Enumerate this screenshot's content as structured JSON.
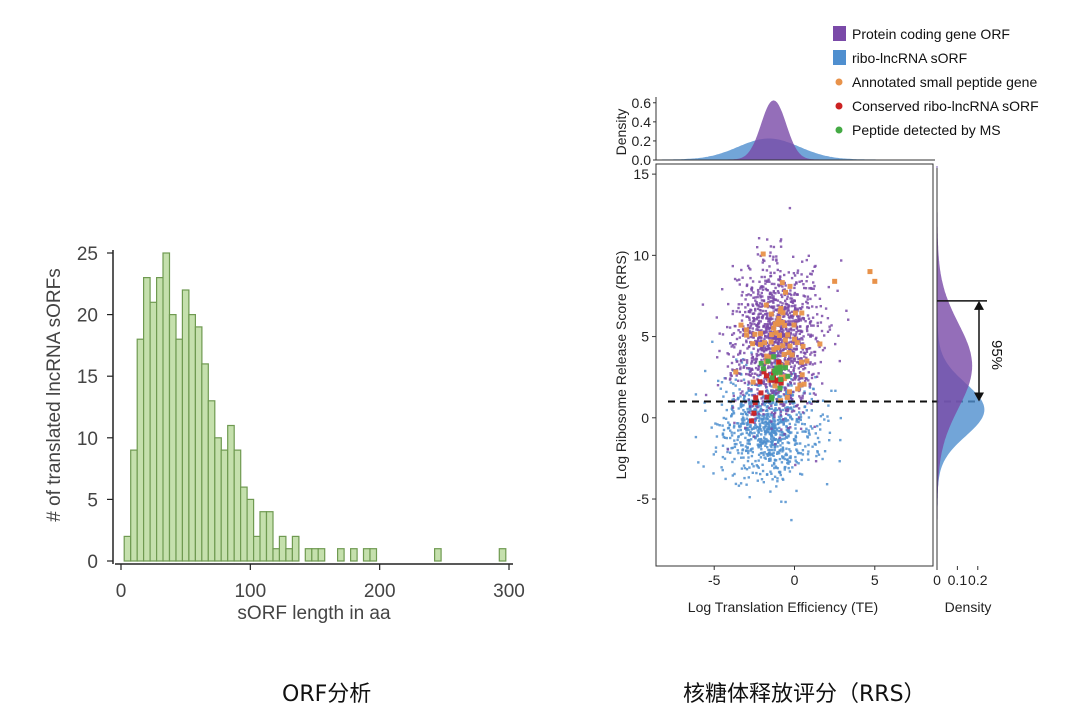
{
  "captions": {
    "left": "ORF分析",
    "right": "核糖体释放评分（RRS）"
  },
  "chart_data": [
    {
      "type": "bar",
      "subtype": "histogram",
      "xlabel": "sORF length in aa",
      "ylabel": "# of translated lncRNA sORFs",
      "xlim": [
        0,
        300
      ],
      "ylim": [
        0,
        25
      ],
      "x_ticks": [
        "0",
        "100",
        "200",
        "300"
      ],
      "y_ticks": [
        "0",
        "5",
        "10",
        "15",
        "20",
        "25"
      ],
      "bin_width": 5,
      "bars": [
        {
          "x": 5,
          "value": 2
        },
        {
          "x": 10,
          "value": 9
        },
        {
          "x": 15,
          "value": 18
        },
        {
          "x": 20,
          "value": 23
        },
        {
          "x": 25,
          "value": 21
        },
        {
          "x": 30,
          "value": 23
        },
        {
          "x": 35,
          "value": 25
        },
        {
          "x": 40,
          "value": 20
        },
        {
          "x": 45,
          "value": 18
        },
        {
          "x": 50,
          "value": 22
        },
        {
          "x": 55,
          "value": 20
        },
        {
          "x": 60,
          "value": 19
        },
        {
          "x": 65,
          "value": 16
        },
        {
          "x": 70,
          "value": 13
        },
        {
          "x": 75,
          "value": 10
        },
        {
          "x": 80,
          "value": 9
        },
        {
          "x": 85,
          "value": 11
        },
        {
          "x": 90,
          "value": 9
        },
        {
          "x": 95,
          "value": 6
        },
        {
          "x": 100,
          "value": 5
        },
        {
          "x": 105,
          "value": 2
        },
        {
          "x": 110,
          "value": 4
        },
        {
          "x": 115,
          "value": 4
        },
        {
          "x": 120,
          "value": 1
        },
        {
          "x": 125,
          "value": 2
        },
        {
          "x": 130,
          "value": 1
        },
        {
          "x": 135,
          "value": 2
        },
        {
          "x": 145,
          "value": 1
        },
        {
          "x": 150,
          "value": 1
        },
        {
          "x": 155,
          "value": 1
        },
        {
          "x": 170,
          "value": 1
        },
        {
          "x": 180,
          "value": 1
        },
        {
          "x": 190,
          "value": 1
        },
        {
          "x": 195,
          "value": 1
        },
        {
          "x": 245,
          "value": 1
        },
        {
          "x": 295,
          "value": 1
        }
      ],
      "bar_color": "#c5e0ad",
      "bar_edge_color": "#6f9a51"
    },
    {
      "type": "scatter",
      "xlabel": "Log Translation Efficiency (TE)",
      "ylabel": "Log Ribosome Release Score (RRS)",
      "xlim": [
        -8.5,
        8.5
      ],
      "ylim": [
        -9,
        15.5
      ],
      "x_ticks": [
        "-5",
        "0",
        "5"
      ],
      "y_ticks": [
        "-5",
        "0",
        "5",
        "10",
        "15"
      ],
      "threshold_rrs": 1,
      "legend_position": "top-right",
      "series": [
        {
          "name": "Protein coding gene ORF",
          "color": "#7a4aa8",
          "center": [
            -1.2,
            5.0
          ],
          "spread": [
            1.3,
            2.3
          ],
          "count": 1300
        },
        {
          "name": "ribo-lncRNA sORF",
          "color": "#4f8fcf",
          "center": [
            -1.6,
            -0.5
          ],
          "spread": [
            1.5,
            1.6
          ],
          "count": 900
        },
        {
          "name": "Annotated small peptide gene",
          "color": "#e8924a",
          "center": [
            -0.9,
            4.8
          ],
          "spread": [
            1.0,
            1.6
          ],
          "count": 70
        },
        {
          "name": "Conserved ribo-lncRNA sORF",
          "color": "#cc2222",
          "center": [
            -1.8,
            1.8
          ],
          "spread": [
            0.7,
            0.9
          ],
          "count": 18
        },
        {
          "name": "Peptide detected by MS",
          "color": "#44aa44",
          "center": [
            -1.2,
            2.6
          ],
          "spread": [
            0.6,
            0.8
          ],
          "count": 18
        }
      ],
      "extra_points": [
        {
          "series": "Annotated small peptide gene",
          "x": 2.5,
          "y": 8.4
        },
        {
          "series": "Annotated small peptide gene",
          "x": 5.0,
          "y": 8.4
        },
        {
          "series": "Annotated small peptide gene",
          "x": 4.7,
          "y": 9.0
        }
      ],
      "top_density": {
        "ylabel": "Density",
        "y_ticks": [
          "0.0",
          "0.2",
          "0.4",
          "0.6"
        ],
        "ylim": [
          0,
          0.65
        ],
        "curves": [
          {
            "name": "ribo-lncRNA sORF",
            "peak_x": -1.6,
            "peak": 0.22,
            "width": 1.9
          },
          {
            "name": "Protein coding gene ORF",
            "peak_x": -1.3,
            "peak": 0.62,
            "width": 0.75
          }
        ]
      },
      "right_density": {
        "xlabel": "Density",
        "x_ticks": [
          "0",
          "0.1",
          "0.2"
        ],
        "xlim": [
          0,
          0.26
        ],
        "curves": [
          {
            "name": "ribo-lncRNA sORF",
            "peak_y": 0.5,
            "peak": 0.23,
            "width": 1.6
          },
          {
            "name": "Protein coding gene ORF",
            "peak_y": 3.2,
            "peak": 0.17,
            "width": 2.6
          }
        ],
        "interval_top": 7.2,
        "interval_bottom": 1.0,
        "interval_label": "95%"
      }
    }
  ]
}
